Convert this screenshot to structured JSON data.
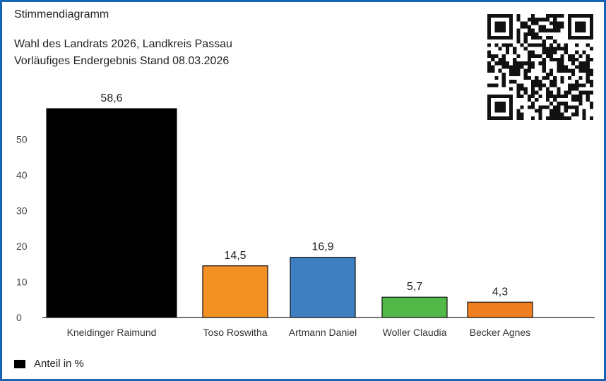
{
  "header": {
    "label": "Stimmendiagramm",
    "election": "Wahl des Landrats 2026, Landkreis Passau",
    "status": "Vorläufiges Endergebnis Stand 08.03.2026"
  },
  "legend": {
    "label": "Anteil in %",
    "color": "#000000"
  },
  "qr_code": {
    "icon": "qr-code-icon"
  },
  "chart_data": {
    "type": "bar",
    "title": "",
    "xlabel": "",
    "ylabel": "",
    "ylim": [
      0,
      58.6
    ],
    "yticks": [
      0,
      10,
      20,
      30,
      40,
      50
    ],
    "grid": false,
    "legend_position": "bottom-left",
    "categories": [
      "Kneidinger Raimund",
      "Toso Roswitha",
      "Artmann Daniel",
      "Woller Claudia",
      "Becker Agnes"
    ],
    "values": [
      58.6,
      14.5,
      16.9,
      5.7,
      4.3
    ],
    "value_labels": [
      "58,6",
      "14,5",
      "16,9",
      "5,7",
      "4,3"
    ],
    "colors": [
      "#000000",
      "#f39125",
      "#3e7fc1",
      "#52b848",
      "#ef7d22"
    ]
  }
}
